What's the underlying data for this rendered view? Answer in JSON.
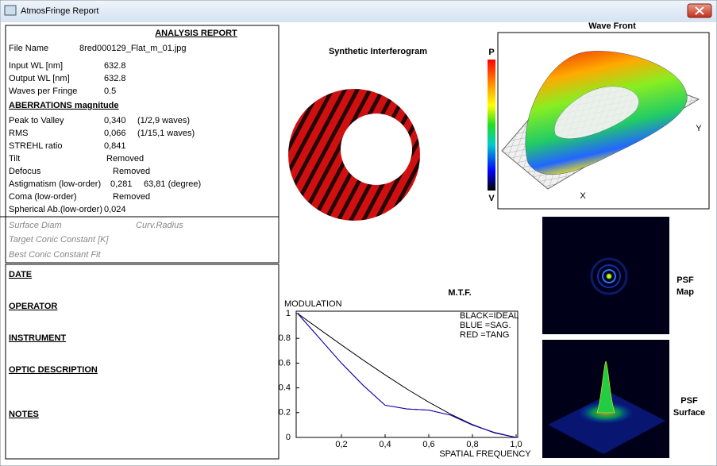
{
  "window": {
    "title": "AtmosFringe  Report"
  },
  "report": {
    "title": "ANALYSIS  REPORT",
    "file_label": "File Name",
    "file_value": "8red000129_Flat_m_01.jpg",
    "inputs": [
      {
        "label": "Input  WL [nm]",
        "value": "632.8"
      },
      {
        "label": "Output WL [nm]",
        "value": "632.8"
      },
      {
        "label": "Waves per Fringe",
        "value": "0.5"
      }
    ],
    "aberrations_heading": "ABERRATIONS magnitude",
    "aberrations": [
      {
        "label": "Peak to Valley",
        "value": "0,340",
        "note": "(1/2,9 waves)"
      },
      {
        "label": "RMS",
        "value": "0,066",
        "note": "(1/15,1 waves)"
      },
      {
        "label": "STREHL ratio",
        "value": "0,841"
      },
      {
        "label": "Tilt",
        "value": "Removed"
      },
      {
        "label": "Defocus",
        "value": "Removed"
      },
      {
        "label": "Astigmatism  (low-order)",
        "value": "0,281",
        "note": "63,81  (degree)"
      },
      {
        "label": "Coma        (low-order)",
        "value": "Removed"
      },
      {
        "label": "Spherical Ab.(low-order)",
        "value": "0,024"
      }
    ],
    "surface": [
      "Surface Diam",
      "Curv.Radius",
      "Target Conic Constant [K]",
      "Best Conic Constant Fit"
    ],
    "notes": [
      "DATE",
      "OPERATOR",
      "INSTRUMENT",
      "OPTIC DESCRIPTION",
      "NOTES"
    ]
  },
  "interferogram": {
    "title": "Synthetic Interferogram"
  },
  "wavefront": {
    "title": "Wave Front",
    "top_label": "P",
    "bottom_label": "V",
    "x_label": "X",
    "y_label": "Y"
  },
  "psf": {
    "map_label": [
      "PSF",
      "Map"
    ],
    "surface_label": [
      "PSF",
      "Surface"
    ]
  },
  "chart_data": {
    "type": "line",
    "title": "M.T.F.",
    "y_label": "MODULATION",
    "x_label": "SPATIAL FREQUENCY",
    "x": [
      0,
      0.1,
      0.2,
      0.3,
      0.4,
      0.5,
      0.6,
      0.7,
      0.8,
      0.9,
      1.0
    ],
    "series": [
      {
        "name": "BLACK=IDEAL",
        "color": "#000000",
        "values": [
          1,
          0.873,
          0.747,
          0.624,
          0.505,
          0.391,
          0.285,
          0.188,
          0.104,
          0.037,
          0
        ]
      },
      {
        "name": "RED    =TANG",
        "color": "#cc0000",
        "values": [
          1,
          0.8,
          0.6,
          0.42,
          0.26,
          0.23,
          0.22,
          0.18,
          0.1,
          0.04,
          0
        ]
      },
      {
        "name": "BLUE  =SAG.",
        "color": "#0000cc",
        "values": [
          1,
          0.8,
          0.6,
          0.42,
          0.26,
          0.23,
          0.22,
          0.18,
          0.1,
          0.04,
          0
        ]
      }
    ],
    "xlim": [
      0,
      1
    ],
    "ylim": [
      0,
      1
    ],
    "xticks": [
      {
        "value": 0.2,
        "label": "0,2"
      },
      {
        "value": 0.4,
        "label": "0,4"
      },
      {
        "value": 0.6,
        "label": "0,6"
      },
      {
        "value": 0.8,
        "label": "0,8"
      },
      {
        "value": 1.0,
        "label": "1,0"
      }
    ],
    "yticks": [
      0,
      0.2,
      0.4,
      0.6,
      0.8,
      1
    ]
  }
}
